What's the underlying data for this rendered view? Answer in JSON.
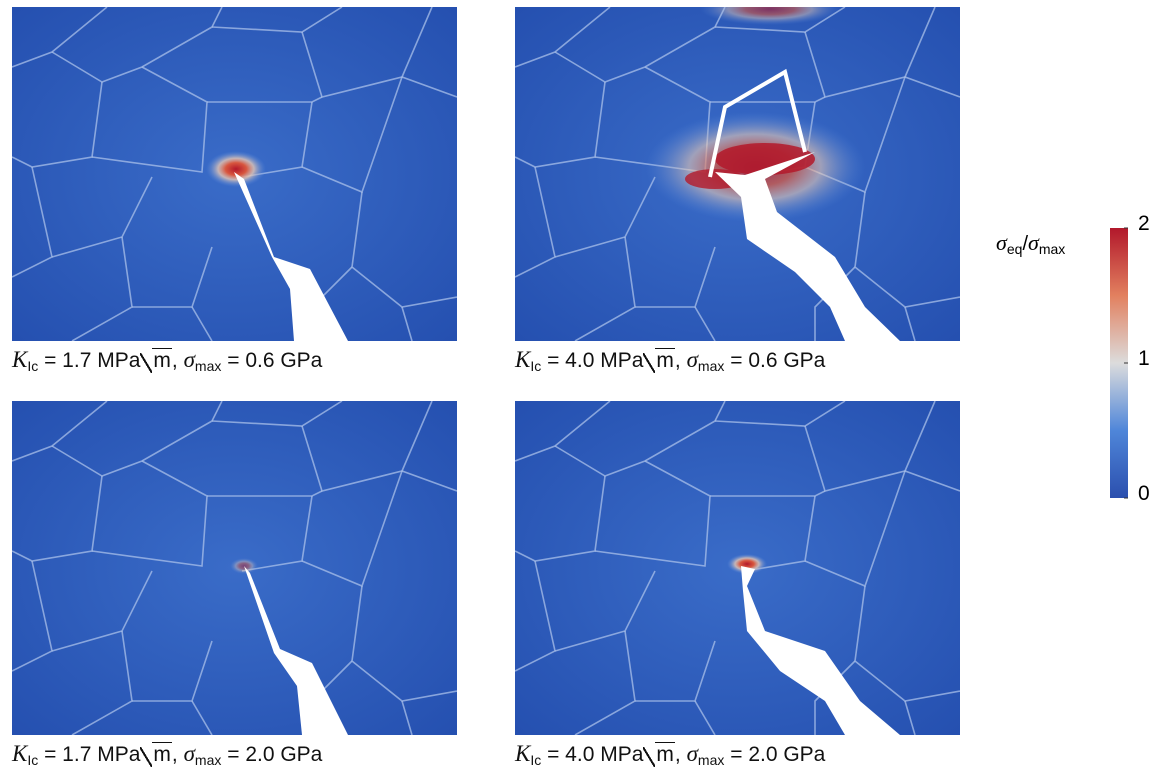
{
  "panels": [
    {
      "caption": {
        "k": "K",
        "k_sub": "Ic",
        "k_text": "= 1.7 MPa",
        "root": "m",
        "sep": ",",
        "sigma": "σ",
        "sigma_sub": "max",
        "sigma_text": "= 0.6 GPa"
      }
    },
    {
      "caption": {
        "k": "K",
        "k_sub": "Ic",
        "k_text": "= 4.0 MPa",
        "root": "m",
        "sep": ",",
        "sigma": "σ",
        "sigma_sub": "max",
        "sigma_text": "= 0.6 GPa"
      }
    },
    {
      "caption": {
        "k": "K",
        "k_sub": "Ic",
        "k_text": "= 1.7 MPa",
        "root": "m",
        "sep": ",",
        "sigma": "σ",
        "sigma_sub": "max",
        "sigma_text": "= 2.0 GPa"
      }
    },
    {
      "caption": {
        "k": "K",
        "k_sub": "Ic",
        "k_text": "= 4.0 MPa",
        "root": "m",
        "sep": ",",
        "sigma": "σ",
        "sigma_sub": "max",
        "sigma_text": "= 2.0 GPa"
      }
    }
  ],
  "colorbar": {
    "label": {
      "num": "σ",
      "num_sub": "eq",
      "slash": "/",
      "den": "σ",
      "den_sub": "max"
    },
    "lim": [
      0,
      2
    ],
    "ticks": [
      0,
      1,
      2
    ]
  }
}
